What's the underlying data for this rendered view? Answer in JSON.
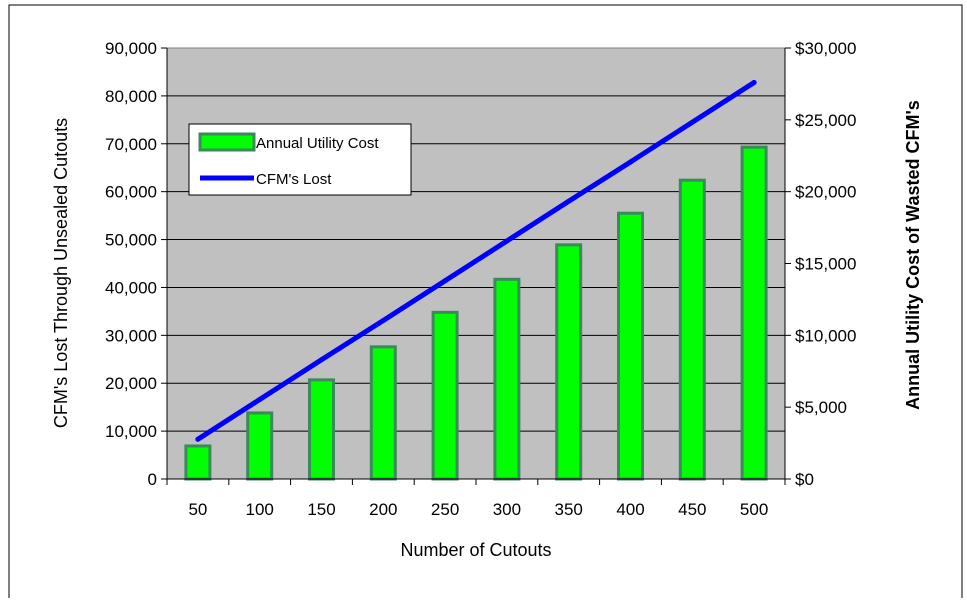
{
  "chart_data": {
    "type": "bar",
    "categories": [
      "50",
      "100",
      "150",
      "200",
      "250",
      "300",
      "350",
      "400",
      "450",
      "500"
    ],
    "series": [
      {
        "name": "Annual Utility Cost",
        "type": "bar",
        "axis": "right",
        "color": "#00ff00",
        "edge_color": "#3a8a5a",
        "values": [
          2300,
          4600,
          6900,
          9200,
          11600,
          13900,
          16300,
          18500,
          20800,
          23100
        ]
      },
      {
        "name": "CFM's Lost",
        "type": "line",
        "axis": "left",
        "color": "#0000ff",
        "values": [
          8300,
          16600,
          24900,
          33100,
          41400,
          49700,
          58000,
          66200,
          74500,
          82800
        ]
      }
    ],
    "xlabel": "Number of Cutouts",
    "ylabel": "CFM's Lost Through Unsealed Cutouts",
    "ylabel_right": "Annual Utility Cost of Wasted CFM's",
    "ylim": [
      0,
      90000
    ],
    "ylim_right": [
      0,
      30000
    ],
    "yticks": [
      "0",
      "10,000",
      "20,000",
      "30,000",
      "40,000",
      "50,000",
      "60,000",
      "70,000",
      "80,000",
      "90,000"
    ],
    "yticks_right": [
      "$0",
      "$5,000",
      "$10,000",
      "$15,000",
      "$20,000",
      "$25,000",
      "$30,000"
    ],
    "plot_background": "#c0c0c0",
    "grid": true,
    "legend": "upper-left"
  }
}
